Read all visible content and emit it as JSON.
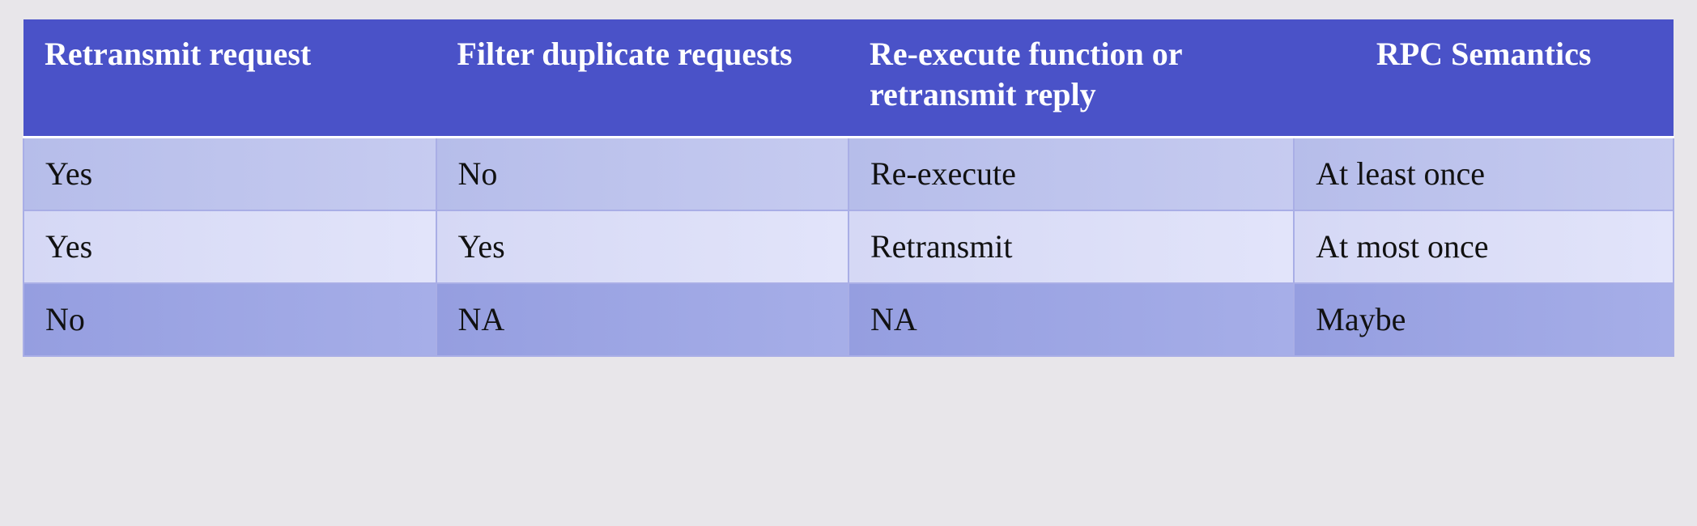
{
  "table": {
    "columns": [
      {
        "label": "Retransmit request",
        "width_pct": 25,
        "align": "left"
      },
      {
        "label": "Filter duplicate requests",
        "width_pct": 25,
        "align": "left"
      },
      {
        "label": "Re-execute function or retransmit reply",
        "width_pct": 27,
        "align": "left"
      },
      {
        "label": "RPC Semantics",
        "width_pct": 23,
        "align": "center"
      }
    ],
    "rows": [
      [
        "Yes",
        "No",
        "Re-execute",
        "At least once"
      ],
      [
        "Yes",
        "Yes",
        "Retransmit",
        "At most once"
      ],
      [
        "No",
        "NA",
        "NA",
        "Maybe"
      ]
    ],
    "styles": {
      "header_bg": "#4a52c8",
      "header_text_color": "#ffffff",
      "header_fontsize_pt": 40,
      "header_fontweight": "bold",
      "body_fontsize_pt": 40,
      "body_text_color": "#111111",
      "page_background": "#e8e6ea",
      "cell_border_color": "#a9aee6",
      "header_underline_color": "#ffffff",
      "row_backgrounds": [
        {
          "from": "#b6bdea",
          "to": "#c6cbf0"
        },
        {
          "from": "#d5d8f5",
          "to": "#e2e4fa"
        },
        {
          "from": "#959ee0",
          "to": "#a6aee8"
        }
      ],
      "font_family": "Times New Roman"
    }
  }
}
